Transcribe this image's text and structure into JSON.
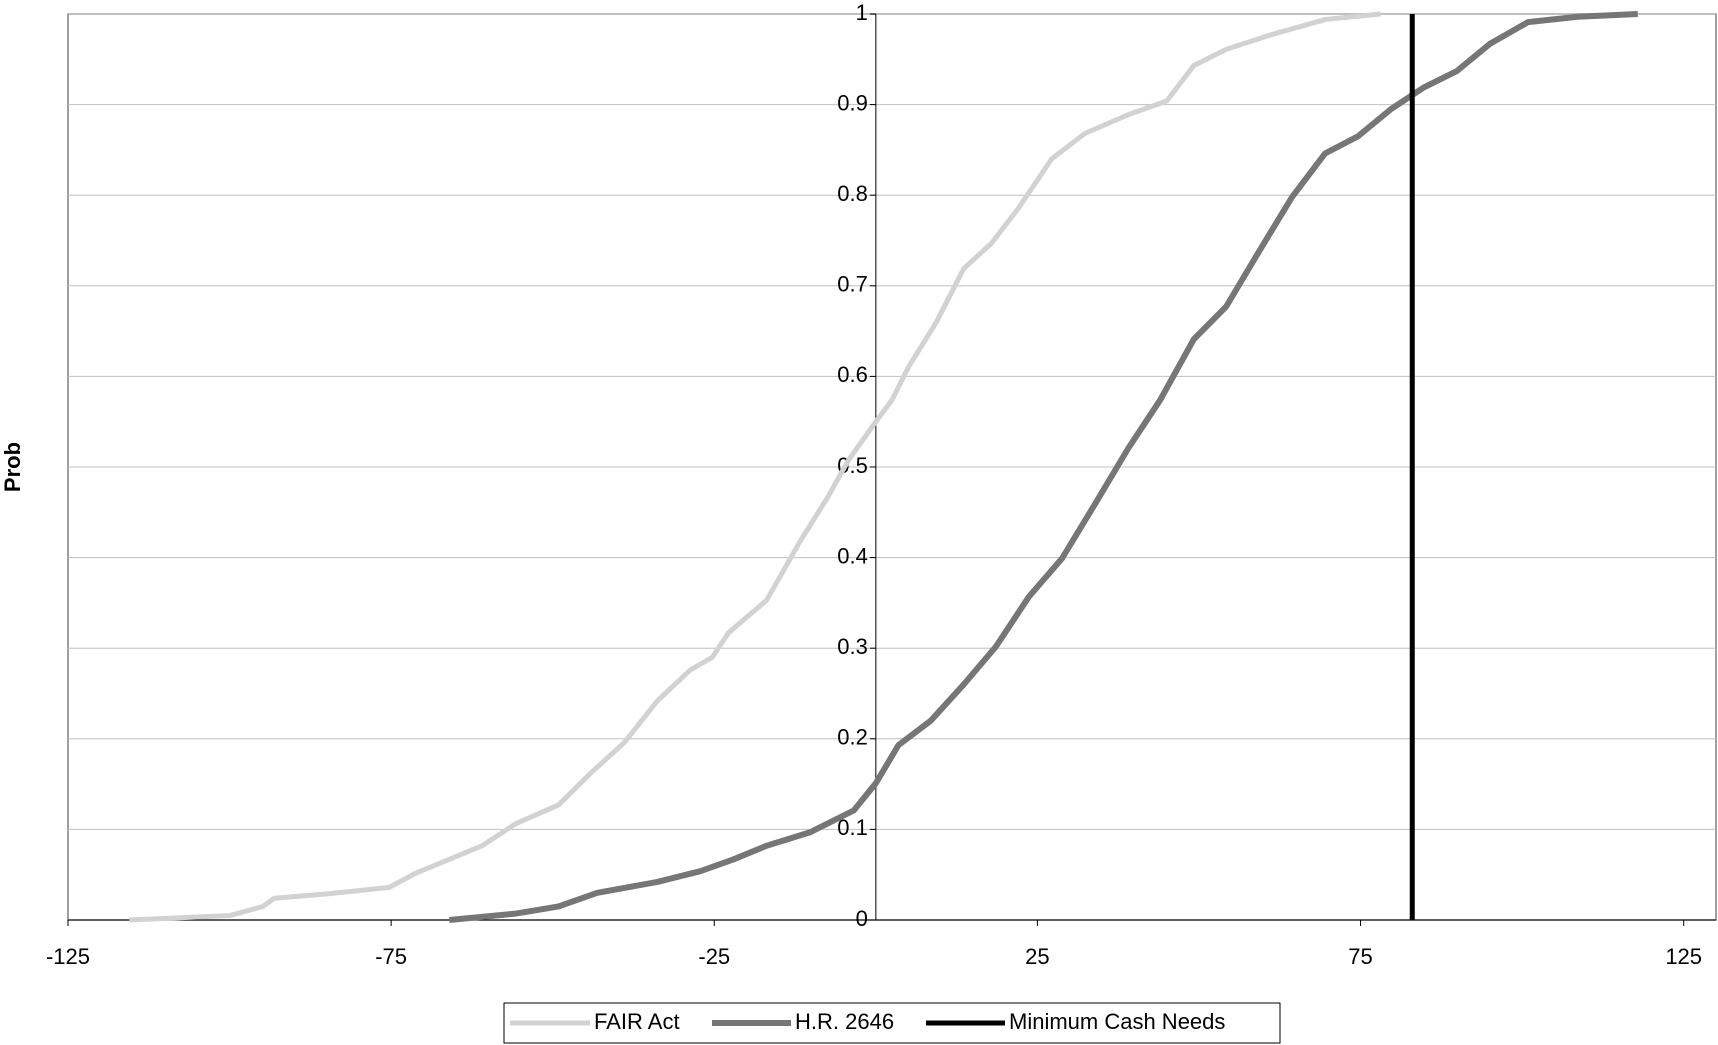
{
  "chart_data": {
    "type": "line",
    "y_label": "Prob",
    "xlim": [
      -125,
      130
    ],
    "ylim": [
      0,
      1
    ],
    "xticks": [
      -125,
      -75,
      -25,
      25,
      75,
      125
    ],
    "yticks": [
      0,
      0.1,
      0.2,
      0.3,
      0.4,
      0.5,
      0.6,
      0.7,
      0.8,
      0.9,
      1
    ],
    "grid": true,
    "legend": "bottom",
    "series": [
      {
        "name": "FAIR Act",
        "color": "#d2d2d2",
        "x": [
          -115.5,
          -99.9,
          -94.8,
          -93.1,
          -84.7,
          -75.3,
          -71.1,
          -66.0,
          -60.9,
          -55.8,
          -49.1,
          -44.0,
          -38.9,
          -33.8,
          -28.7,
          -25.3,
          -22.8,
          -16.9,
          -11.8,
          -7.5,
          -4.2,
          0,
          2.5,
          5.1,
          9.3,
          13.6,
          17.9,
          22.1,
          27.2,
          32.3,
          39.1,
          45,
          49.2,
          54.2,
          61.1,
          69.6,
          78.1
        ],
        "values": [
          0,
          0.005,
          0.015,
          0.024,
          0.029,
          0.036,
          0.052,
          0.067,
          0.082,
          0.106,
          0.127,
          0.163,
          0.196,
          0.242,
          0.276,
          0.29,
          0.317,
          0.353,
          0.417,
          0.466,
          0.508,
          0.55,
          0.574,
          0.611,
          0.659,
          0.719,
          0.747,
          0.786,
          0.84,
          0.868,
          0.889,
          0.904,
          0.943,
          0.961,
          0.977,
          0.994,
          1
        ]
      },
      {
        "name": "H.R. 2646",
        "color": "#767676",
        "x": [
          -66,
          -55.8,
          -49.1,
          -43.1,
          -33.8,
          -27.1,
          -22,
          -16.9,
          -10.1,
          -3.4,
          0,
          3.5,
          8.5,
          13.6,
          18.6,
          23.7,
          28.8,
          33.9,
          39,
          44,
          49.2,
          54.2,
          59.3,
          64.4,
          69.5,
          74.6,
          79.7,
          84.8,
          89.9,
          95,
          100.9,
          108.6,
          117.9
        ],
        "values": [
          0,
          0.007,
          0.015,
          0.03,
          0.042,
          0.054,
          0.067,
          0.082,
          0.097,
          0.121,
          0.151,
          0.193,
          0.22,
          0.26,
          0.302,
          0.357,
          0.399,
          0.459,
          0.52,
          0.574,
          0.641,
          0.677,
          0.738,
          0.798,
          0.846,
          0.865,
          0.895,
          0.919,
          0.937,
          0.967,
          0.991,
          0.997,
          1
        ]
      },
      {
        "name": "Minimum Cash Needs",
        "color": "#000000",
        "x": [
          83,
          83
        ],
        "values": [
          0,
          1
        ]
      }
    ]
  }
}
